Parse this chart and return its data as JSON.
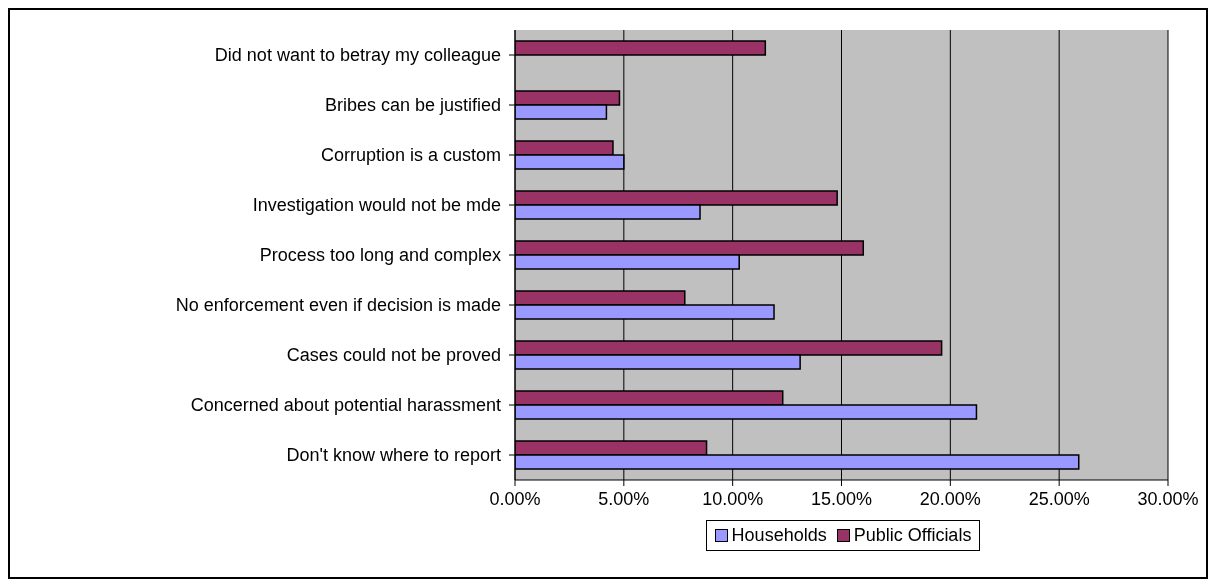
{
  "chart_data": {
    "type": "bar",
    "orientation": "horizontal",
    "categories": [
      "Did not want to betray my colleague",
      "Bribes can be justified",
      "Corruption is a custom",
      "Investigation would not be mde",
      "Process too long and complex",
      "No enforcement even if decision is made",
      "Cases could not be proved",
      "Concerned about potential harassment",
      "Don't know where to report"
    ],
    "series": [
      {
        "name": "Households",
        "color": "#9999ff",
        "values": [
          null,
          4.2,
          5.0,
          8.5,
          10.3,
          11.9,
          13.1,
          21.2,
          25.9
        ]
      },
      {
        "name": "Public Officials",
        "color": "#993366",
        "values": [
          11.5,
          4.8,
          4.5,
          14.8,
          16.0,
          7.8,
          19.6,
          12.3,
          8.8
        ]
      }
    ],
    "xlim": [
      0,
      30
    ],
    "xticks": [
      {
        "value": 0,
        "label": "0.00%"
      },
      {
        "value": 5,
        "label": "5.00%"
      },
      {
        "value": 10,
        "label": "10.00%"
      },
      {
        "value": 15,
        "label": "15.00%"
      },
      {
        "value": 20,
        "label": "20.00%"
      },
      {
        "value": 25,
        "label": "25.00%"
      },
      {
        "value": 30,
        "label": "30.00%"
      }
    ],
    "grid": "x",
    "legend": "bottom"
  }
}
